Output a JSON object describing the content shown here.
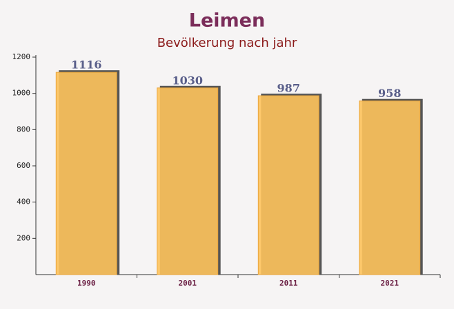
{
  "chart_data": {
    "type": "bar",
    "title": "Leimen",
    "subtitle": "Bevölkerung nach jahr",
    "categories": [
      "1990",
      "2001",
      "2011",
      "2021"
    ],
    "values": [
      1116,
      1030,
      987,
      958
    ],
    "color": "#fec35c",
    "ylim": [
      0,
      1200
    ],
    "yticks": [
      200,
      400,
      600,
      800,
      1000,
      1200
    ],
    "grid": false
  }
}
